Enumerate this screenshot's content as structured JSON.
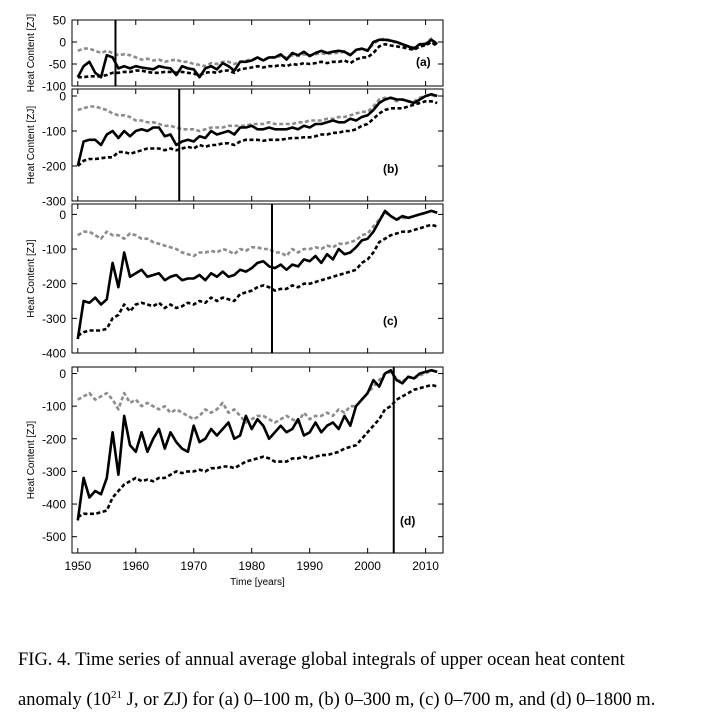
{
  "chart_data": {
    "type": "line",
    "xlabel": "Time [years]",
    "xlim": [
      1949,
      2013
    ],
    "x_ticks": [
      1950,
      1960,
      1970,
      1980,
      1990,
      2000,
      2010
    ],
    "years": [
      1950,
      1951,
      1952,
      1953,
      1954,
      1955,
      1956,
      1957,
      1958,
      1959,
      1960,
      1961,
      1962,
      1963,
      1964,
      1965,
      1966,
      1967,
      1968,
      1969,
      1970,
      1971,
      1972,
      1973,
      1974,
      1975,
      1976,
      1977,
      1978,
      1979,
      1980,
      1981,
      1982,
      1983,
      1984,
      1985,
      1986,
      1987,
      1988,
      1989,
      1990,
      1991,
      1992,
      1993,
      1994,
      1995,
      1996,
      1997,
      1998,
      1999,
      2000,
      2001,
      2002,
      2003,
      2004,
      2005,
      2006,
      2007,
      2008,
      2009,
      2010,
      2011,
      2012
    ],
    "series_styles": [
      {
        "color": "#000000",
        "style": "solid",
        "width": 2.6
      },
      {
        "color": "#8c8c8c",
        "style": "dashed",
        "width": 2.6
      },
      {
        "color": "#000000",
        "style": "dashed",
        "width": 2.6
      }
    ],
    "panels": [
      {
        "label": "(a)",
        "ylabel": "Heat Content [ZJ]",
        "ylim": [
          -100,
          50
        ],
        "y_ticks": [
          50,
          0,
          -50,
          -100
        ],
        "vline": 1956.5,
        "series": [
          {
            "values": [
              -80,
              -55,
              -45,
              -70,
              -80,
              -30,
              -35,
              -60,
              -55,
              -60,
              -55,
              -58,
              -60,
              -62,
              -55,
              -58,
              -60,
              -75,
              -55,
              -60,
              -62,
              -80,
              -60,
              -55,
              -62,
              -48,
              -55,
              -65,
              -45,
              -45,
              -42,
              -35,
              -42,
              -35,
              -35,
              -28,
              -40,
              -25,
              -30,
              -22,
              -32,
              -25,
              -20,
              -25,
              -22,
              -20,
              -22,
              -30,
              -18,
              -15,
              -20,
              0,
              5,
              5,
              3,
              0,
              -5,
              -10,
              -15,
              -5,
              -5,
              5,
              -5
            ]
          },
          {
            "values": [
              -20,
              -15,
              -15,
              -20,
              -25,
              -20,
              -25,
              -30,
              -28,
              -30,
              -35,
              -40,
              -38,
              -42,
              -40,
              -45,
              -42,
              -40,
              -45,
              -45,
              -50,
              -52,
              -55,
              -48,
              -50,
              -45,
              -45,
              -50,
              -45,
              -42,
              -40,
              -38,
              -40,
              -35,
              -35,
              -32,
              -36,
              -30,
              -32,
              -28,
              -30,
              -28,
              -25,
              -28,
              -25,
              -25,
              -22,
              -28,
              -20,
              -15,
              -18,
              -5,
              5,
              8,
              3,
              -2,
              -5,
              -10,
              -12,
              -5,
              -3,
              8,
              -5
            ]
          },
          {
            "values": [
              -80,
              -80,
              -78,
              -78,
              -78,
              -75,
              -70,
              -70,
              -68,
              -68,
              -65,
              -65,
              -68,
              -70,
              -70,
              -68,
              -68,
              -70,
              -68,
              -70,
              -72,
              -75,
              -70,
              -68,
              -70,
              -65,
              -65,
              -70,
              -62,
              -60,
              -58,
              -55,
              -58,
              -55,
              -55,
              -52,
              -55,
              -50,
              -52,
              -48,
              -50,
              -48,
              -45,
              -48,
              -45,
              -45,
              -42,
              -48,
              -40,
              -35,
              -35,
              -25,
              -10,
              -5,
              -8,
              -10,
              -12,
              -15,
              -18,
              -10,
              -8,
              0,
              -10
            ]
          }
        ]
      },
      {
        "label": "(b)",
        "ylabel": "Heat Content [ZJ]",
        "ylim": [
          -300,
          20
        ],
        "y_ticks": [
          0,
          -100,
          -200,
          -300
        ],
        "vline": 1967.5,
        "series": [
          {
            "values": [
              -200,
              -130,
              -125,
              -125,
              -140,
              -110,
              -100,
              -120,
              -100,
              -115,
              -100,
              -95,
              -100,
              -90,
              -90,
              -115,
              -110,
              -140,
              -130,
              -125,
              -130,
              -115,
              -120,
              -100,
              -110,
              -105,
              -100,
              -110,
              -90,
              -90,
              -85,
              -95,
              -95,
              -90,
              -95,
              -95,
              -95,
              -90,
              -95,
              -85,
              -90,
              -80,
              -80,
              -75,
              -70,
              -75,
              -75,
              -65,
              -70,
              -60,
              -55,
              -40,
              -20,
              -10,
              -5,
              -10,
              -10,
              -15,
              -20,
              -10,
              0,
              5,
              0
            ]
          },
          {
            "values": [
              -40,
              -35,
              -30,
              -30,
              -35,
              -40,
              -50,
              -55,
              -55,
              -60,
              -70,
              -70,
              -75,
              -75,
              -80,
              -85,
              -85,
              -90,
              -95,
              -95,
              -95,
              -100,
              -95,
              -90,
              -90,
              -90,
              -85,
              -85,
              -85,
              -85,
              -80,
              -80,
              -80,
              -75,
              -80,
              -80,
              -80,
              -80,
              -75,
              -75,
              -70,
              -70,
              -70,
              -65,
              -65,
              -60,
              -60,
              -55,
              -50,
              -45,
              -45,
              -30,
              -10,
              -5,
              -5,
              -15,
              -10,
              -15,
              -15,
              -5,
              0,
              3,
              -2
            ]
          },
          {
            "values": [
              -200,
              -185,
              -180,
              -180,
              -178,
              -175,
              -175,
              -160,
              -160,
              -165,
              -160,
              -155,
              -150,
              -150,
              -150,
              -155,
              -150,
              -155,
              -150,
              -145,
              -150,
              -140,
              -145,
              -140,
              -140,
              -135,
              -135,
              -140,
              -130,
              -125,
              -125,
              -125,
              -128,
              -125,
              -125,
              -125,
              -122,
              -120,
              -120,
              -118,
              -118,
              -115,
              -110,
              -110,
              -105,
              -105,
              -100,
              -100,
              -95,
              -85,
              -80,
              -65,
              -50,
              -40,
              -35,
              -35,
              -35,
              -30,
              -25,
              -20,
              -15,
              -15,
              -20
            ]
          }
        ]
      },
      {
        "label": "(c)",
        "ylabel": "Heat Content [ZJ]",
        "ylim": [
          -400,
          30
        ],
        "y_ticks": [
          0,
          -100,
          -200,
          -300,
          -400
        ],
        "vline": 1983.5,
        "series": [
          {
            "values": [
              -360,
              -250,
              -255,
              -240,
              -260,
              -245,
              -140,
              -210,
              -110,
              -180,
              -170,
              -160,
              -180,
              -175,
              -170,
              -190,
              -180,
              -175,
              -190,
              -185,
              -185,
              -175,
              -190,
              -170,
              -180,
              -165,
              -180,
              -175,
              -160,
              -165,
              -155,
              -140,
              -135,
              -150,
              -155,
              -145,
              -160,
              -145,
              -150,
              -130,
              -135,
              -120,
              -140,
              -115,
              -130,
              -100,
              -115,
              -110,
              -95,
              -75,
              -70,
              -50,
              -20,
              10,
              -5,
              -15,
              -5,
              -10,
              -5,
              0,
              5,
              10,
              5
            ]
          },
          {
            "values": [
              -60,
              -50,
              -50,
              -60,
              -70,
              -50,
              -60,
              -60,
              -70,
              -55,
              -60,
              -70,
              -70,
              -80,
              -85,
              -90,
              -95,
              -100,
              -110,
              -115,
              -120,
              -110,
              -110,
              -105,
              -110,
              -100,
              -105,
              -115,
              -100,
              -105,
              -95,
              -95,
              -100,
              -100,
              -110,
              -110,
              -120,
              -100,
              -110,
              -100,
              -100,
              -95,
              -100,
              -90,
              -95,
              -85,
              -85,
              -80,
              -75,
              -60,
              -55,
              -35,
              -15,
              5,
              -5,
              -15,
              -10,
              -10,
              -5,
              0,
              5,
              10,
              5
            ]
          },
          {
            "values": [
              -350,
              -340,
              -335,
              -335,
              -335,
              -330,
              -300,
              -290,
              -260,
              -280,
              -260,
              -255,
              -260,
              -265,
              -255,
              -270,
              -260,
              -270,
              -265,
              -255,
              -260,
              -250,
              -255,
              -240,
              -250,
              -240,
              -245,
              -250,
              -230,
              -225,
              -220,
              -210,
              -205,
              -210,
              -220,
              -215,
              -215,
              -205,
              -210,
              -200,
              -200,
              -195,
              -190,
              -185,
              -180,
              -175,
              -170,
              -165,
              -160,
              -140,
              -130,
              -110,
              -80,
              -70,
              -60,
              -55,
              -50,
              -50,
              -45,
              -40,
              -35,
              -30,
              -35
            ]
          }
        ]
      },
      {
        "label": "(d)",
        "ylabel": "Heat Content [ZJ]",
        "ylim": [
          -550,
          20
        ],
        "y_ticks": [
          0,
          -100,
          -200,
          -300,
          -400,
          -500
        ],
        "vline": 2004.5,
        "series": [
          {
            "values": [
              -450,
              -320,
              -380,
              -360,
              -370,
              -320,
              -180,
              -310,
              -130,
              -220,
              -240,
              -180,
              -240,
              -200,
              -170,
              -230,
              -180,
              -210,
              -230,
              -240,
              -160,
              -210,
              -200,
              -170,
              -190,
              -170,
              -150,
              -200,
              -190,
              -130,
              -170,
              -140,
              -160,
              -200,
              -180,
              -160,
              -180,
              -170,
              -140,
              -190,
              -180,
              -150,
              -180,
              -160,
              -150,
              -170,
              -130,
              -160,
              -100,
              -80,
              -60,
              -20,
              -40,
              0,
              10,
              -20,
              -30,
              -10,
              -15,
              0,
              5,
              10,
              5
            ]
          },
          {
            "values": [
              -80,
              -70,
              -60,
              -80,
              -70,
              -60,
              -80,
              -110,
              -60,
              -90,
              -80,
              -100,
              -90,
              -100,
              -110,
              -100,
              -120,
              -110,
              -120,
              -130,
              -140,
              -130,
              -110,
              -120,
              -110,
              -90,
              -120,
              -110,
              -130,
              -150,
              -140,
              -130,
              -130,
              -140,
              -150,
              -140,
              -130,
              -140,
              -150,
              -120,
              -140,
              -130,
              -130,
              -120,
              -130,
              -110,
              -120,
              -100,
              -100,
              -80,
              -60,
              -40,
              -20,
              0,
              5,
              -20,
              -25,
              -10,
              -15,
              -5,
              0,
              10,
              5
            ]
          },
          {
            "values": [
              -440,
              -430,
              -430,
              -430,
              -425,
              -420,
              -380,
              -360,
              -340,
              -330,
              -320,
              -330,
              -325,
              -330,
              -320,
              -320,
              -310,
              -300,
              -305,
              -300,
              -300,
              -295,
              -300,
              -290,
              -290,
              -285,
              -285,
              -290,
              -280,
              -270,
              -265,
              -260,
              -255,
              -260,
              -270,
              -270,
              -270,
              -260,
              -260,
              -255,
              -260,
              -255,
              -250,
              -250,
              -245,
              -240,
              -230,
              -225,
              -220,
              -200,
              -180,
              -160,
              -140,
              -110,
              -100,
              -80,
              -70,
              -60,
              -50,
              -45,
              -40,
              -35,
              -40
            ]
          }
        ]
      }
    ]
  },
  "caption": {
    "line1": "FIG. 4. Time series of annual average global integrals of upper ocean heat content",
    "line2_prefix": "anomaly (10",
    "line2_sup": "21",
    "line2_suffix": " J, or ZJ) for (a) 0–100 m, (b) 0–300 m, (c) 0–700 m, and (d) 0–1800 m."
  }
}
